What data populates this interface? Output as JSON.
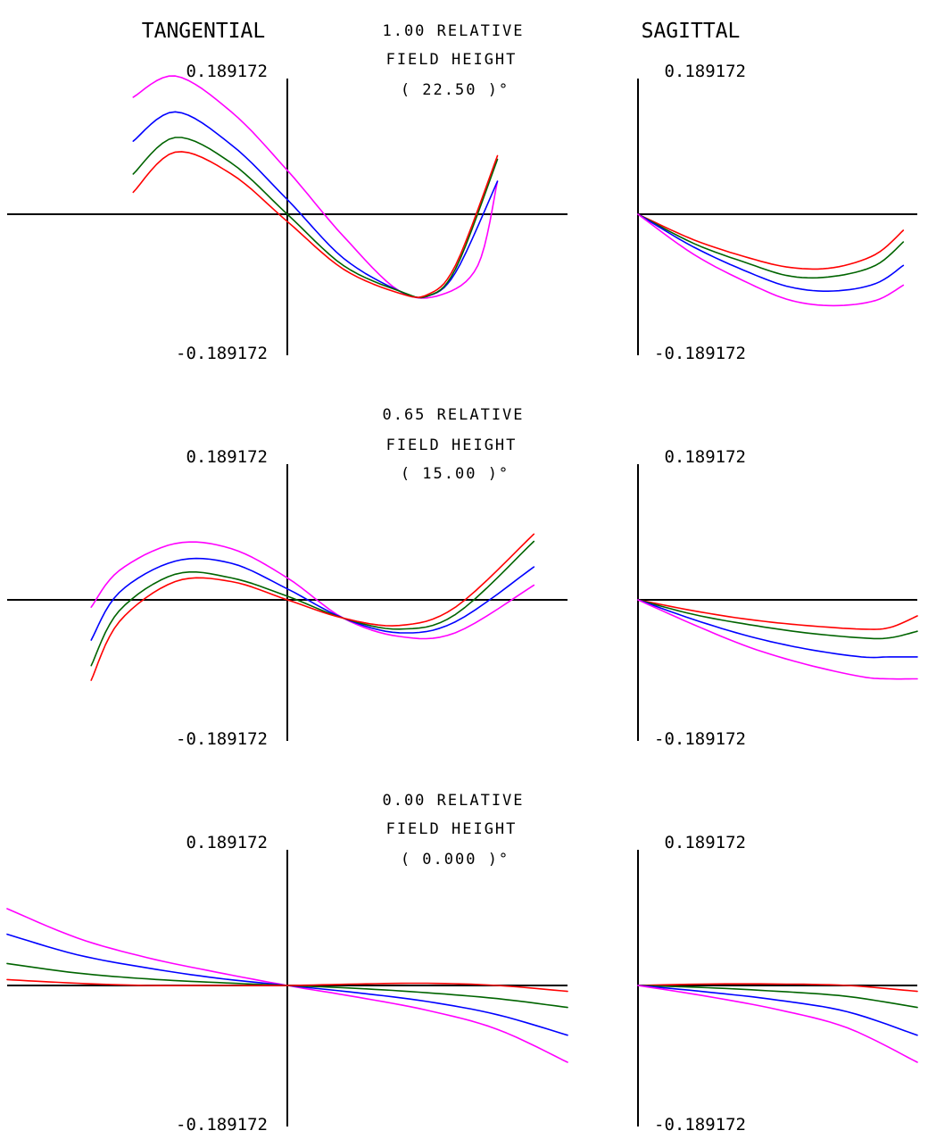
{
  "header": {
    "tangential_title": "TANGENTIAL",
    "sagittal_title": "SAGITTAL"
  },
  "colors": {
    "axis": "#000000",
    "magenta": "#ff00ff",
    "blue": "#0000ff",
    "green": "#006400",
    "red": "#ff0000"
  },
  "chart_data": [
    {
      "type": "line",
      "title": "1.00 RELATIVE FIELD HEIGHT ( 22.50 )°",
      "field": {
        "rel": "1.00  RELATIVE",
        "height_label": "FIELD HEIGHT",
        "angle": "( 22.50 )°"
      },
      "tangential": {
        "ylim": [
          -0.189172,
          0.189172
        ],
        "xlim": [
          -1,
          1
        ],
        "y_top_label": "0.189172",
        "y_bottom_label": "-0.189172",
        "series": [
          {
            "name": "magenta",
            "color": "#ff00ff",
            "x": [
              -0.55,
              -0.4,
              -0.2,
              0.0,
              0.2,
              0.4,
              0.55,
              0.68,
              0.75
            ],
            "y": [
              0.16,
              0.189,
              0.14,
              0.06,
              -0.03,
              -0.105,
              -0.11,
              -0.07,
              0.045
            ]
          },
          {
            "name": "blue",
            "color": "#0000ff",
            "x": [
              -0.55,
              -0.4,
              -0.2,
              0.0,
              0.2,
              0.4,
              0.5,
              0.6,
              0.75
            ],
            "y": [
              0.1,
              0.14,
              0.095,
              0.02,
              -0.06,
              -0.105,
              -0.112,
              -0.08,
              0.045
            ]
          },
          {
            "name": "green",
            "color": "#006400",
            "x": [
              -0.55,
              -0.4,
              -0.2,
              0.0,
              0.2,
              0.4,
              0.5,
              0.6,
              0.75
            ],
            "y": [
              0.055,
              0.105,
              0.07,
              0.0,
              -0.07,
              -0.105,
              -0.112,
              -0.075,
              0.075
            ]
          },
          {
            "name": "red",
            "color": "#ff0000",
            "x": [
              -0.55,
              -0.4,
              -0.2,
              0.0,
              0.2,
              0.4,
              0.5,
              0.6,
              0.75
            ],
            "y": [
              0.03,
              0.085,
              0.055,
              -0.01,
              -0.075,
              -0.108,
              -0.11,
              -0.07,
              0.08
            ]
          }
        ]
      },
      "sagittal": {
        "ylim": [
          -0.189172,
          0.189172
        ],
        "xlim": [
          0,
          1
        ],
        "y_top_label": "0.189172",
        "y_bottom_label": "-0.189172",
        "series": [
          {
            "name": "red",
            "color": "#ff0000",
            "x": [
              0.0,
              0.2,
              0.4,
              0.55,
              0.7,
              0.85,
              0.95
            ],
            "y": [
              0.0,
              -0.035,
              -0.06,
              -0.073,
              -0.073,
              -0.055,
              -0.022
            ]
          },
          {
            "name": "green",
            "color": "#006400",
            "x": [
              0.0,
              0.2,
              0.4,
              0.55,
              0.7,
              0.85,
              0.95
            ],
            "y": [
              0.0,
              -0.04,
              -0.068,
              -0.085,
              -0.085,
              -0.07,
              -0.038
            ]
          },
          {
            "name": "blue",
            "color": "#0000ff",
            "x": [
              0.0,
              0.2,
              0.4,
              0.55,
              0.7,
              0.85,
              0.95
            ],
            "y": [
              0.0,
              -0.045,
              -0.08,
              -0.1,
              -0.105,
              -0.095,
              -0.07
            ]
          },
          {
            "name": "magenta",
            "color": "#ff00ff",
            "x": [
              0.0,
              0.2,
              0.4,
              0.55,
              0.7,
              0.85,
              0.95
            ],
            "y": [
              0.0,
              -0.055,
              -0.095,
              -0.118,
              -0.125,
              -0.118,
              -0.097
            ]
          }
        ]
      }
    },
    {
      "type": "line",
      "title": "0.65 RELATIVE FIELD HEIGHT ( 15.00 )°",
      "field": {
        "rel": "0.65  RELATIVE",
        "height_label": "FIELD HEIGHT",
        "angle": "( 15.00 )°"
      },
      "tangential": {
        "ylim": [
          -0.189172,
          0.189172
        ],
        "xlim": [
          -1,
          1
        ],
        "y_top_label": "0.189172",
        "y_bottom_label": "-0.189172",
        "series": [
          {
            "name": "magenta",
            "color": "#ff00ff",
            "x": [
              -0.7,
              -0.6,
              -0.4,
              -0.2,
              0.0,
              0.2,
              0.4,
              0.6,
              0.88
            ],
            "y": [
              -0.01,
              0.04,
              0.077,
              0.07,
              0.03,
              -0.025,
              -0.05,
              -0.045,
              0.02
            ]
          },
          {
            "name": "blue",
            "color": "#0000ff",
            "x": [
              -0.7,
              -0.6,
              -0.4,
              -0.2,
              0.0,
              0.2,
              0.4,
              0.6,
              0.88
            ],
            "y": [
              -0.055,
              0.01,
              0.053,
              0.05,
              0.015,
              -0.025,
              -0.045,
              -0.03,
              0.045
            ]
          },
          {
            "name": "green",
            "color": "#006400",
            "x": [
              -0.7,
              -0.6,
              -0.4,
              -0.2,
              0.0,
              0.2,
              0.4,
              0.6,
              0.88
            ],
            "y": [
              -0.09,
              -0.015,
              0.035,
              0.03,
              0.005,
              -0.025,
              -0.04,
              -0.02,
              0.08
            ]
          },
          {
            "name": "red",
            "color": "#ff0000",
            "x": [
              -0.7,
              -0.6,
              -0.4,
              -0.2,
              0.0,
              0.2,
              0.4,
              0.6,
              0.88
            ],
            "y": [
              -0.11,
              -0.03,
              0.025,
              0.025,
              0.0,
              -0.025,
              -0.035,
              -0.01,
              0.09
            ]
          }
        ]
      },
      "sagittal": {
        "ylim": [
          -0.189172,
          0.189172
        ],
        "xlim": [
          0,
          1
        ],
        "y_top_label": "0.189172",
        "y_bottom_label": "-0.189172",
        "series": [
          {
            "name": "red",
            "color": "#ff0000",
            "x": [
              0.0,
              0.2,
              0.4,
              0.6,
              0.8,
              0.9,
              1.0
            ],
            "y": [
              0.0,
              -0.015,
              -0.027,
              -0.035,
              -0.04,
              -0.038,
              -0.022
            ]
          },
          {
            "name": "green",
            "color": "#006400",
            "x": [
              0.0,
              0.2,
              0.4,
              0.6,
              0.8,
              0.9,
              1.0
            ],
            "y": [
              0.0,
              -0.02,
              -0.034,
              -0.045,
              -0.052,
              -0.052,
              -0.043
            ]
          },
          {
            "name": "blue",
            "color": "#0000ff",
            "x": [
              0.0,
              0.2,
              0.4,
              0.6,
              0.8,
              0.9,
              1.0
            ],
            "y": [
              0.0,
              -0.027,
              -0.05,
              -0.067,
              -0.078,
              -0.078,
              -0.078
            ]
          },
          {
            "name": "magenta",
            "color": "#ff00ff",
            "x": [
              0.0,
              0.2,
              0.4,
              0.6,
              0.8,
              0.9,
              1.0
            ],
            "y": [
              0.0,
              -0.034,
              -0.065,
              -0.088,
              -0.105,
              -0.108,
              -0.108
            ]
          }
        ]
      }
    },
    {
      "type": "line",
      "title": "0.00 RELATIVE FIELD HEIGHT ( 0.000 )°",
      "field": {
        "rel": "0.00  RELATIVE",
        "height_label": "FIELD HEIGHT",
        "angle": "( 0.000 )°"
      },
      "tangential": {
        "ylim": [
          -0.189172,
          0.189172
        ],
        "xlim": [
          -1,
          1
        ],
        "y_top_label": "0.189172",
        "y_bottom_label": "-0.189172",
        "series": [
          {
            "name": "magenta",
            "color": "#ff00ff",
            "x": [
              -1.0,
              -0.75,
              -0.5,
              -0.25,
              0.0,
              0.25,
              0.5,
              0.75,
              1.0
            ],
            "y": [
              0.105,
              0.065,
              0.038,
              0.018,
              0.0,
              -0.016,
              -0.034,
              -0.06,
              -0.105
            ]
          },
          {
            "name": "blue",
            "color": "#0000ff",
            "x": [
              -1.0,
              -0.75,
              -0.5,
              -0.25,
              0.0,
              0.25,
              0.5,
              0.75,
              1.0
            ],
            "y": [
              0.07,
              0.042,
              0.024,
              0.01,
              0.0,
              -0.01,
              -0.022,
              -0.04,
              -0.068
            ]
          },
          {
            "name": "green",
            "color": "#006400",
            "x": [
              -1.0,
              -0.75,
              -0.5,
              -0.25,
              0.0,
              0.25,
              0.5,
              0.75,
              1.0
            ],
            "y": [
              0.03,
              0.017,
              0.009,
              0.004,
              0.0,
              -0.004,
              -0.01,
              -0.018,
              -0.03
            ]
          },
          {
            "name": "red",
            "color": "#ff0000",
            "x": [
              -1.0,
              -0.75,
              -0.5,
              -0.25,
              0.0,
              0.25,
              0.5,
              0.75,
              1.0
            ],
            "y": [
              0.008,
              0.003,
              0.0,
              0.0,
              0.0,
              0.002,
              0.003,
              0.0,
              -0.008
            ]
          }
        ]
      },
      "sagittal": {
        "ylim": [
          -0.189172,
          0.189172
        ],
        "xlim": [
          0,
          1
        ],
        "y_top_label": "0.189172",
        "y_bottom_label": "-0.189172",
        "series": [
          {
            "name": "red",
            "color": "#ff0000",
            "x": [
              0.0,
              0.25,
              0.5,
              0.75,
              1.0
            ],
            "y": [
              0.0,
              0.002,
              0.002,
              0.0,
              -0.008
            ]
          },
          {
            "name": "green",
            "color": "#006400",
            "x": [
              0.0,
              0.25,
              0.5,
              0.75,
              1.0
            ],
            "y": [
              0.0,
              -0.003,
              -0.008,
              -0.015,
              -0.03
            ]
          },
          {
            "name": "blue",
            "color": "#0000ff",
            "x": [
              0.0,
              0.25,
              0.5,
              0.75,
              1.0
            ],
            "y": [
              0.0,
              -0.009,
              -0.02,
              -0.036,
              -0.068
            ]
          },
          {
            "name": "magenta",
            "color": "#ff00ff",
            "x": [
              0.0,
              0.25,
              0.5,
              0.75,
              1.0
            ],
            "y": [
              0.0,
              -0.015,
              -0.033,
              -0.058,
              -0.105
            ]
          }
        ]
      }
    }
  ]
}
